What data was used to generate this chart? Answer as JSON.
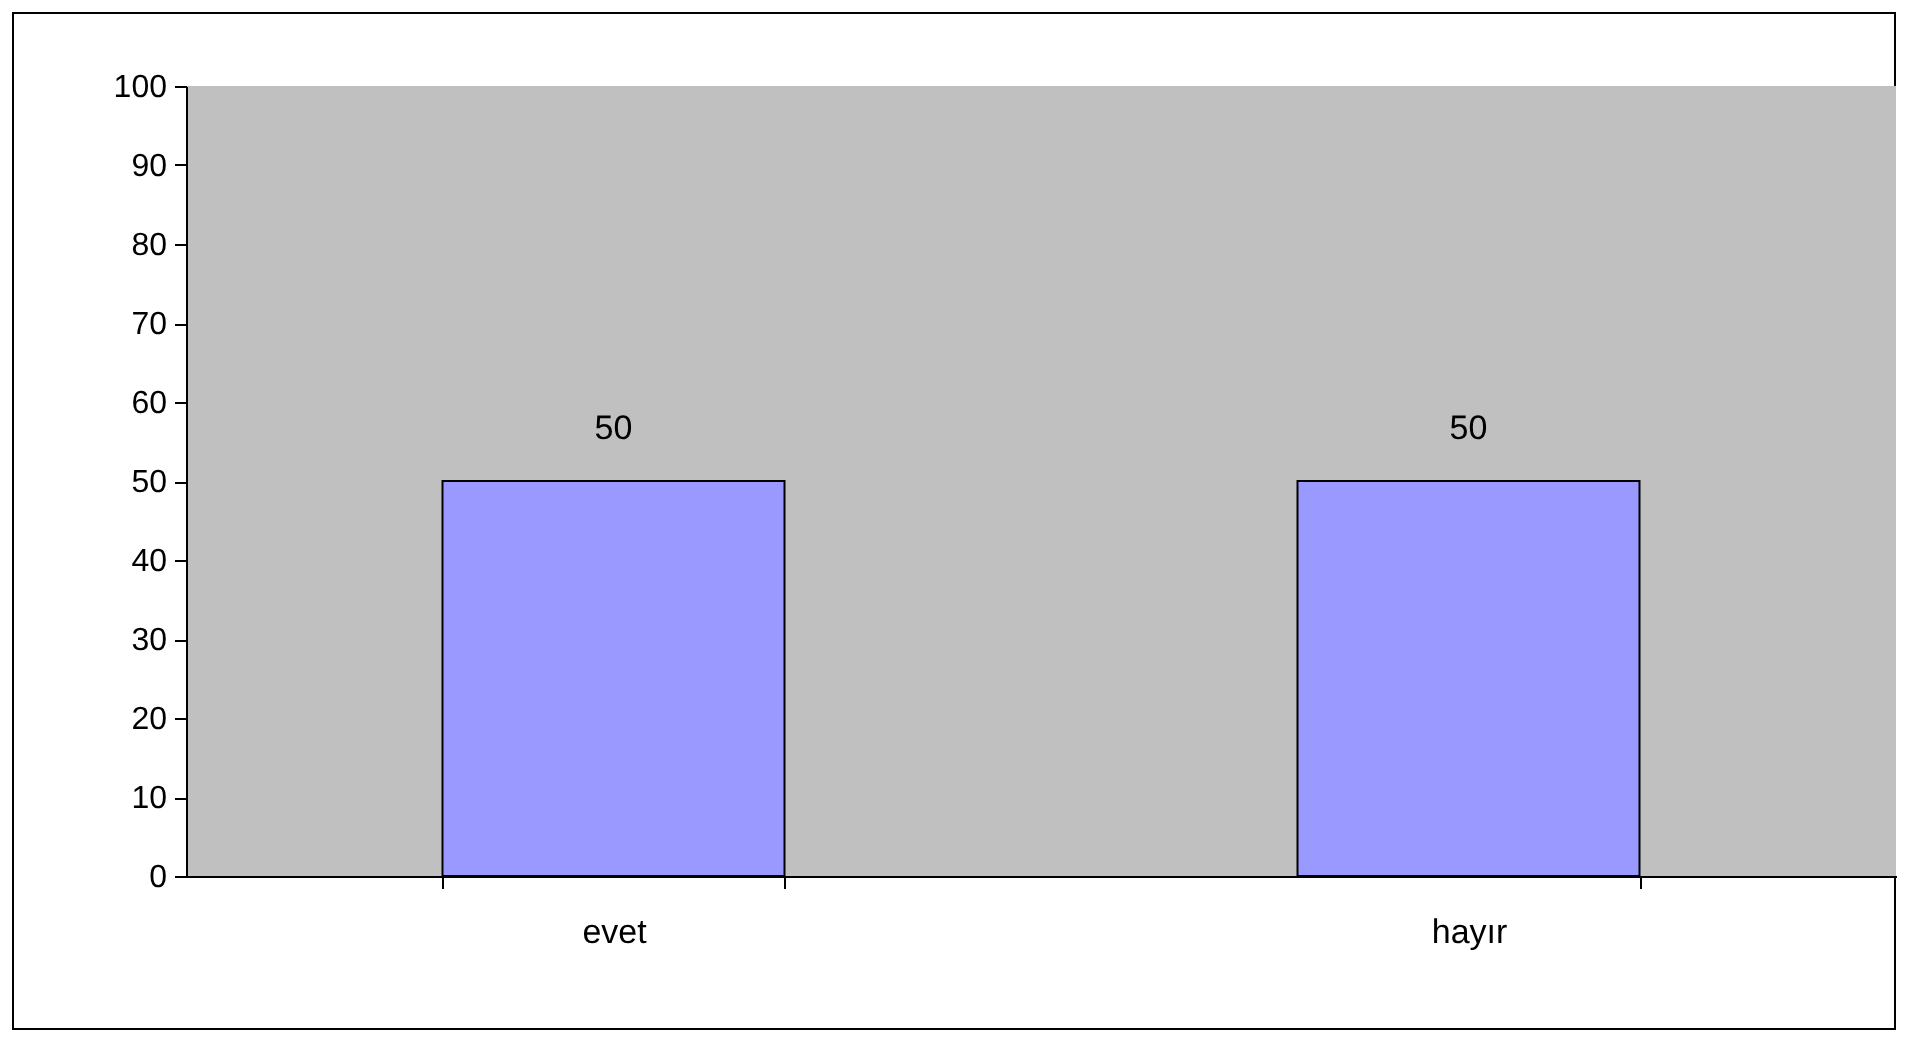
{
  "chart_data": {
    "type": "bar",
    "categories": [
      "evet",
      "hayır"
    ],
    "values": [
      50,
      50
    ],
    "color": "#9999ff",
    "ylim": [
      0,
      100
    ],
    "yticks": [
      0,
      10,
      20,
      30,
      40,
      50,
      60,
      70,
      80,
      90,
      100
    ],
    "grid": false,
    "data_labels": true
  }
}
